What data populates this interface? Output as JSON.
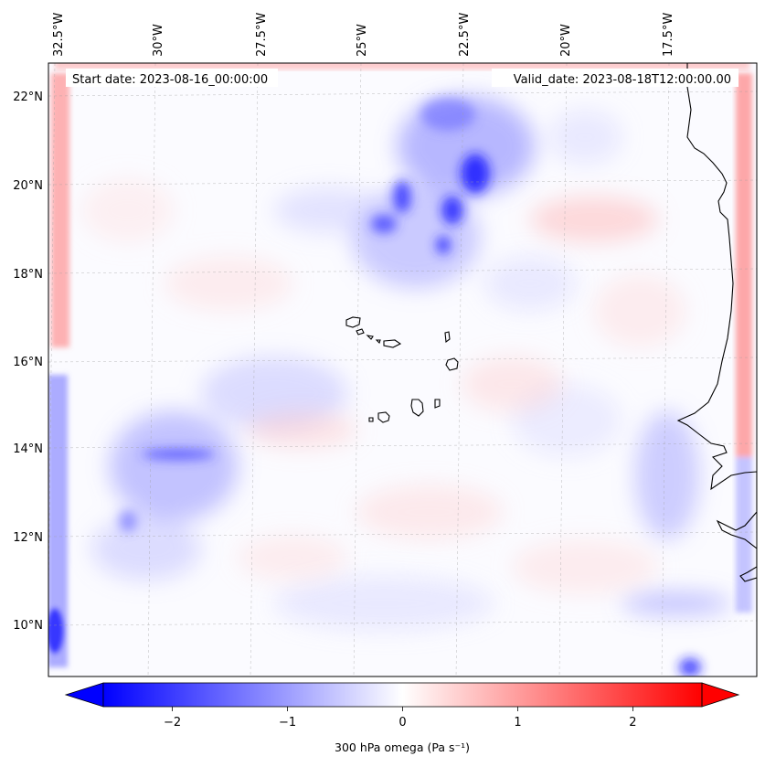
{
  "map": {
    "start_date_label": "Start date: 2023-08-16_00:00:00",
    "valid_date_label": "Valid_date: 2023-08-18T12:00:00.00",
    "lon_ticks": [
      "32.5°W",
      "30°W",
      "27.5°W",
      "25°W",
      "22.5°W",
      "20°W",
      "17.5°W"
    ],
    "lat_ticks": [
      "22°N",
      "20°N",
      "18°N",
      "16°N",
      "14°N",
      "12°N",
      "10°N"
    ],
    "field_name": "300 hPa omega"
  },
  "colorbar": {
    "ticks": [
      "−2",
      "−1",
      "0",
      "1",
      "2"
    ],
    "tick_values": [
      -2,
      -1,
      0,
      1,
      2
    ],
    "range": [
      -2.6,
      2.6
    ],
    "label": "300 hPa omega (Pa s⁻¹)",
    "color_min": "#0000ff",
    "color_mid": "#ffffff",
    "color_max": "#ff0000"
  }
}
